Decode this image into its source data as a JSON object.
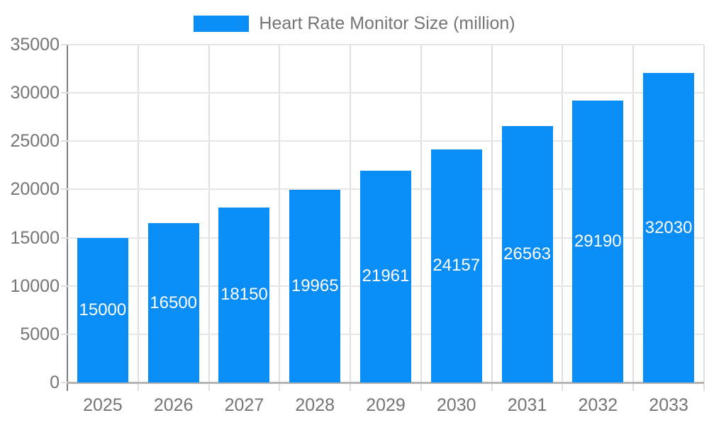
{
  "chart_data": {
    "type": "bar",
    "title": "",
    "series_name": "Heart Rate Monitor Size (million)",
    "categories": [
      "2025",
      "2026",
      "2027",
      "2028",
      "2029",
      "2030",
      "2031",
      "2032",
      "2033"
    ],
    "values": [
      15000,
      16500,
      18150,
      19965,
      21961,
      24157,
      26563,
      29190,
      32030
    ],
    "bar_labels": [
      "15000",
      "16500",
      "18150",
      "19965",
      "21961",
      "24157",
      "26563",
      "29190",
      "32030"
    ],
    "xlabel": "",
    "ylabel": "",
    "ylim": [
      0,
      35000
    ],
    "y_ticks": [
      0,
      5000,
      10000,
      15000,
      20000,
      25000,
      30000,
      35000
    ],
    "y_tick_labels": [
      "0",
      "5000",
      "10000",
      "15000",
      "20000",
      "25000",
      "30000",
      "35000"
    ],
    "grid": true,
    "legend_position": "top-center",
    "colors": {
      "bar": "#0a8df4",
      "bar_label_text": "#ffffff",
      "axis_text": "#757575",
      "legend_text": "#757575",
      "gridline_horizontal": "#e6e6e6",
      "gridline_vertical": "#e0e0e0",
      "y_axis_line": "#808080",
      "x_baseline": "#b5b5b5",
      "background": "#ffffff"
    }
  }
}
